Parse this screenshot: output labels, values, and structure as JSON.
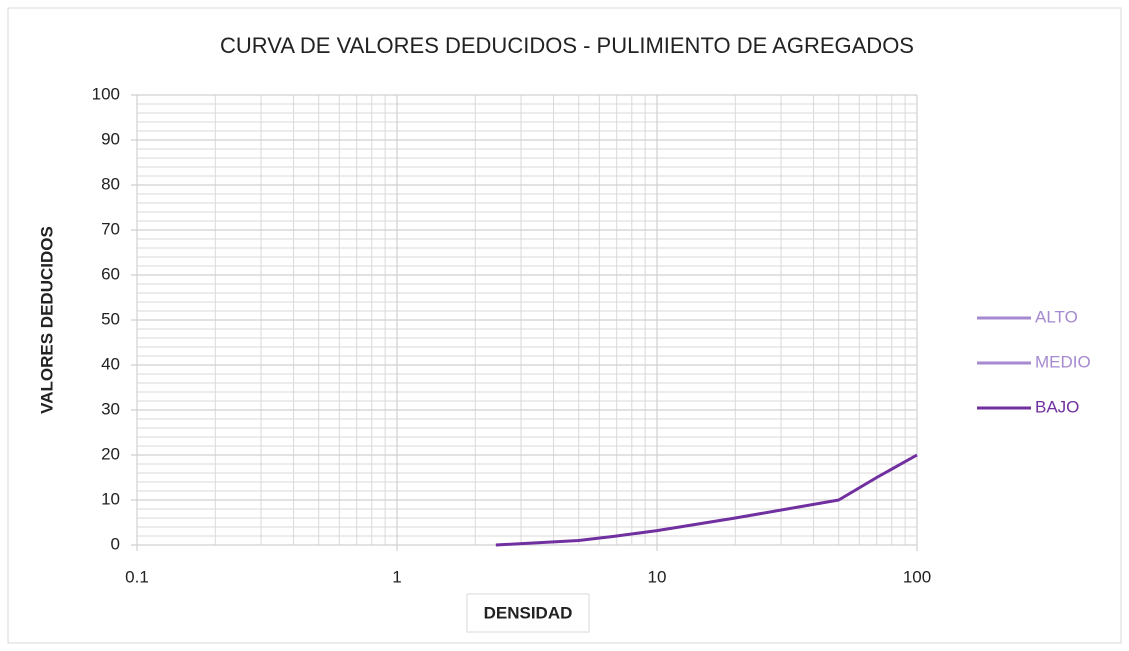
{
  "chart_data": {
    "type": "line",
    "title": "CURVA DE VALORES DEDUCIDOS - PULIMIENTO DE AGREGADOS",
    "x_label": "DENSIDAD",
    "y_label": "VALORES DEDUCIDOS",
    "xscale": "log",
    "xlim": [
      0.1,
      100
    ],
    "xticks": [
      0.1,
      1,
      10,
      100
    ],
    "xminorticks": [
      0.2,
      0.3,
      0.4,
      0.5,
      0.6,
      0.7,
      0.8,
      0.9,
      2,
      3,
      4,
      5,
      6,
      7,
      8,
      9,
      20,
      30,
      40,
      50,
      60,
      70,
      80,
      90
    ],
    "ylim": [
      0,
      100
    ],
    "yticks": [
      0,
      10,
      20,
      30,
      40,
      50,
      60,
      70,
      80,
      90,
      100
    ],
    "yminorticks": [
      2,
      4,
      6,
      8,
      12,
      14,
      16,
      18,
      22,
      24,
      26,
      28,
      32,
      34,
      36,
      38,
      42,
      44,
      46,
      48,
      52,
      54,
      56,
      58,
      62,
      64,
      66,
      68,
      72,
      74,
      76,
      78,
      82,
      84,
      86,
      88,
      92,
      94,
      96,
      98
    ],
    "grid": true,
    "legend": "right",
    "series": [
      {
        "name": "ALTO",
        "color": "#a68ad0",
        "x": [],
        "values": []
      },
      {
        "name": "MEDIO",
        "color": "#a68ad0",
        "x": [],
        "values": []
      },
      {
        "name": "BAJO",
        "color": "#7030a0",
        "x": [
          2.4,
          5,
          7,
          10,
          20,
          50,
          70,
          100
        ],
        "values": [
          0,
          1,
          2,
          3.2,
          6,
          10,
          15,
          20
        ]
      }
    ]
  }
}
